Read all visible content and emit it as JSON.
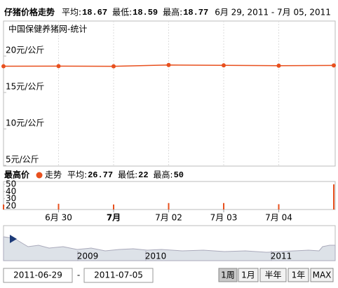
{
  "chart_data": [
    {
      "type": "line",
      "title": "仔猪价格走势",
      "stats": [
        {
          "label": "平均:",
          "value": 18.67
        },
        {
          "label": "最低:",
          "value": 18.59
        },
        {
          "label": "最高:",
          "value": 18.77
        }
      ],
      "stats_color": "#cc0000",
      "date_range": "6月 29, 2011 - 7月 05, 2011",
      "source": "中国保健养猪网-统计",
      "categories": [
        null,
        "6月 30",
        "7月",
        "7月 02",
        "7月 03",
        "7月 04",
        null
      ],
      "bold_category": 2,
      "values": [
        18.6,
        18.62,
        18.59,
        18.77,
        18.72,
        18.68,
        18.71
      ],
      "color": "#e8501e",
      "ylim": [
        5,
        25
      ],
      "yticks": [
        {
          "value": 20,
          "label": "20元/公斤"
        },
        {
          "value": 15,
          "label": "15元/公斤"
        },
        {
          "value": 10,
          "label": "10元/公斤"
        },
        {
          "value": 5,
          "label": "5元/公斤"
        }
      ]
    },
    {
      "type": "bar",
      "title": "最高价",
      "series": [
        {
          "name": "走势",
          "color": "#e8501e",
          "values": [
            22,
            23,
            22,
            24,
            24,
            22.39,
            50
          ]
        }
      ],
      "stats": [
        {
          "label": "平均:",
          "value": 26.77
        },
        {
          "label": "最低:",
          "value": 22
        },
        {
          "label": "最高:",
          "value": 50
        }
      ],
      "stats_color": "#000000",
      "ylim": [
        15,
        54
      ],
      "yticks": [
        50,
        40,
        30,
        20
      ]
    }
  ],
  "navigator": {
    "years": [
      "2009",
      "2010",
      "2011"
    ]
  },
  "controls": {
    "start": "2011-06-29",
    "separator": "-",
    "end": "2011-07-05",
    "ranges": [
      "1周",
      "1月",
      "半年",
      "1年",
      "MAX"
    ],
    "selected": 0
  }
}
